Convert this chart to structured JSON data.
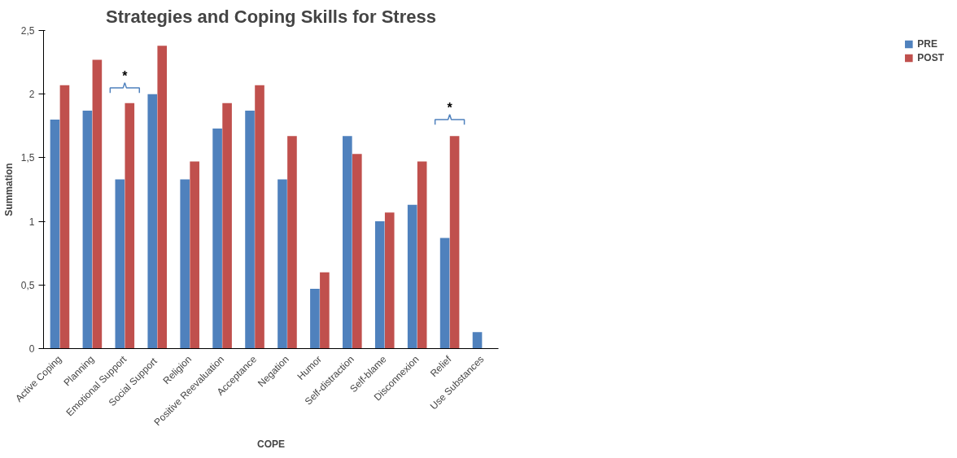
{
  "chart_data": {
    "type": "bar",
    "title": "Strategies and Coping Skills for Stress",
    "xlabel": "COPE",
    "ylabel": "Summation",
    "categories": [
      "Active Coping",
      "Planning",
      "Emotional Support",
      "Social  Support",
      "Religion",
      "Positive Reevaluation",
      "Acceptance",
      "Negation",
      "Humor",
      "Self-distraction",
      "Self-blame",
      "Disconnexion",
      "Relief",
      "Use Substances"
    ],
    "series": [
      {
        "name": "PRE",
        "color": "#4f81bd",
        "values": [
          1.8,
          1.87,
          1.33,
          2.0,
          1.33,
          1.73,
          1.87,
          1.33,
          0.47,
          1.67,
          1.0,
          1.13,
          0.87,
          0.13
        ]
      },
      {
        "name": "POST",
        "color": "#c0504d",
        "values": [
          2.07,
          2.27,
          1.93,
          2.38,
          1.47,
          1.93,
          2.07,
          1.67,
          0.6,
          1.53,
          1.07,
          1.47,
          1.67,
          0
        ]
      }
    ],
    "ylim": [
      0,
      2.5
    ],
    "yticks": [
      0,
      {
        "value": 0.5,
        "label": "0,5"
      },
      1,
      {
        "value": 1.5,
        "label": "1,5"
      },
      2,
      {
        "value": 2.5,
        "label": "2,5"
      }
    ],
    "grid": false,
    "legend": "right",
    "annotations": [
      {
        "text": "*",
        "x": "Emotional Support",
        "y": 2.05
      },
      {
        "text": "*",
        "x": "Relief",
        "y": 1.8
      }
    ]
  }
}
